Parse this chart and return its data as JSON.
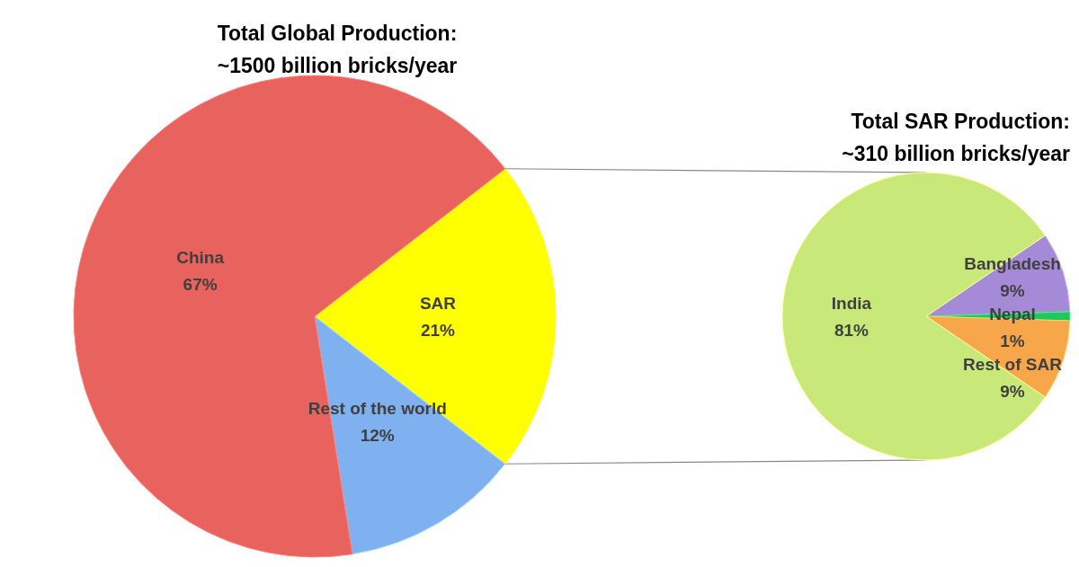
{
  "chart_data": [
    {
      "type": "pie",
      "title": "Total Global Production:\n~1500 billion bricks/year",
      "categories": [
        "SAR",
        "Rest of the world",
        "China"
      ],
      "values": [
        21,
        12,
        67
      ],
      "colors": [
        "#ffff00",
        "#7fb0f0",
        "#e8625e"
      ],
      "value_labels": [
        "21%",
        "12%",
        "67%"
      ]
    },
    {
      "type": "pie",
      "title": "Total SAR Production:\n~310 billion bricks/year",
      "categories": [
        "Bangladesh",
        "Nepal",
        "Rest of SAR",
        "India"
      ],
      "values": [
        9,
        1,
        9,
        81
      ],
      "colors": [
        "#a58ad8",
        "#22c55e",
        "#f8a64a",
        "#c8e87a"
      ],
      "value_labels": [
        "9%",
        "1%",
        "9%",
        "81%"
      ]
    }
  ]
}
